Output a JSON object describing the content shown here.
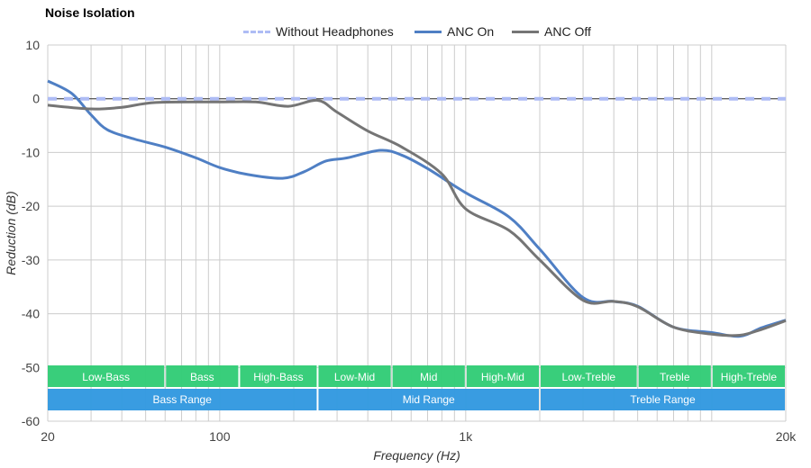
{
  "chart_data": {
    "type": "line",
    "title": "Noise Isolation",
    "xlabel": "Frequency (Hz)",
    "ylabel": "Reduction (dB)",
    "xscale": "log",
    "xlim": [
      20,
      20000
    ],
    "ylim": [
      -60,
      10
    ],
    "grid": true,
    "legend_position": "top-center",
    "y_ticks": [
      10,
      0,
      -10,
      -20,
      -30,
      -40,
      -50,
      -60
    ],
    "x_ticks": [
      {
        "value": 20,
        "label": "20"
      },
      {
        "value": 100,
        "label": "100"
      },
      {
        "value": 1000,
        "label": "1k"
      },
      {
        "value": 20000,
        "label": "20k"
      }
    ],
    "x_gridlines": [
      20,
      30,
      40,
      50,
      60,
      70,
      80,
      90,
      100,
      200,
      300,
      400,
      500,
      600,
      700,
      800,
      900,
      1000,
      2000,
      3000,
      4000,
      5000,
      6000,
      7000,
      8000,
      9000,
      10000,
      20000
    ],
    "series": [
      {
        "name": "Without Headphones",
        "color": "#aebcf5",
        "dashed": true,
        "points": [
          [
            20,
            0
          ],
          [
            20000,
            0
          ]
        ]
      },
      {
        "name": "ANC On",
        "color": "#4f7fc4",
        "dashed": false,
        "points": [
          [
            20,
            3.3
          ],
          [
            25,
            1
          ],
          [
            30,
            -3
          ],
          [
            35,
            -5.8
          ],
          [
            45,
            -7.5
          ],
          [
            60,
            -9
          ],
          [
            80,
            -11
          ],
          [
            100,
            -12.8
          ],
          [
            130,
            -14.1
          ],
          [
            180,
            -14.8
          ],
          [
            220,
            -13.6
          ],
          [
            270,
            -11.6
          ],
          [
            330,
            -11
          ],
          [
            450,
            -9.6
          ],
          [
            550,
            -10.5
          ],
          [
            700,
            -13
          ],
          [
            1000,
            -17.5
          ],
          [
            1500,
            -22
          ],
          [
            2000,
            -28
          ],
          [
            3000,
            -37
          ],
          [
            4000,
            -37.7
          ],
          [
            5000,
            -38.6
          ],
          [
            7000,
            -42.5
          ],
          [
            10000,
            -43.5
          ],
          [
            13000,
            -44.2
          ],
          [
            16000,
            -42.6
          ],
          [
            20000,
            -41.2
          ]
        ]
      },
      {
        "name": "ANC Off",
        "color": "#757575",
        "dashed": false,
        "points": [
          [
            20,
            -1.2
          ],
          [
            30,
            -1.9
          ],
          [
            40,
            -1.6
          ],
          [
            55,
            -0.7
          ],
          [
            100,
            -0.6
          ],
          [
            140,
            -0.6
          ],
          [
            190,
            -1.4
          ],
          [
            250,
            -0.3
          ],
          [
            300,
            -2.5
          ],
          [
            400,
            -6
          ],
          [
            550,
            -9
          ],
          [
            800,
            -14
          ],
          [
            1000,
            -20.5
          ],
          [
            1500,
            -24.5
          ],
          [
            2000,
            -30
          ],
          [
            3000,
            -37.5
          ],
          [
            4000,
            -37.7
          ],
          [
            5000,
            -38.7
          ],
          [
            7000,
            -42.5
          ],
          [
            10000,
            -43.8
          ],
          [
            13000,
            -44
          ],
          [
            16000,
            -42.9
          ],
          [
            20000,
            -41.3
          ]
        ]
      }
    ],
    "bands": [
      {
        "label": "Low-Bass",
        "from": 20,
        "to": 60
      },
      {
        "label": "Bass",
        "from": 60,
        "to": 120
      },
      {
        "label": "High-Bass",
        "from": 120,
        "to": 250
      },
      {
        "label": "Low-Mid",
        "from": 250,
        "to": 500
      },
      {
        "label": "Mid",
        "from": 500,
        "to": 1000
      },
      {
        "label": "High-Mid",
        "from": 1000,
        "to": 2000
      },
      {
        "label": "Low-Treble",
        "from": 2000,
        "to": 5000
      },
      {
        "label": "Treble",
        "from": 5000,
        "to": 10000
      },
      {
        "label": "High-Treble",
        "from": 10000,
        "to": 20000
      }
    ],
    "ranges": [
      {
        "label": "Bass Range",
        "from": 20,
        "to": 250
      },
      {
        "label": "Mid Range",
        "from": 250,
        "to": 2000
      },
      {
        "label": "Treble Range",
        "from": 2000,
        "to": 20000
      }
    ],
    "band_color": "#33cc77",
    "range_color": "#3399e0"
  }
}
